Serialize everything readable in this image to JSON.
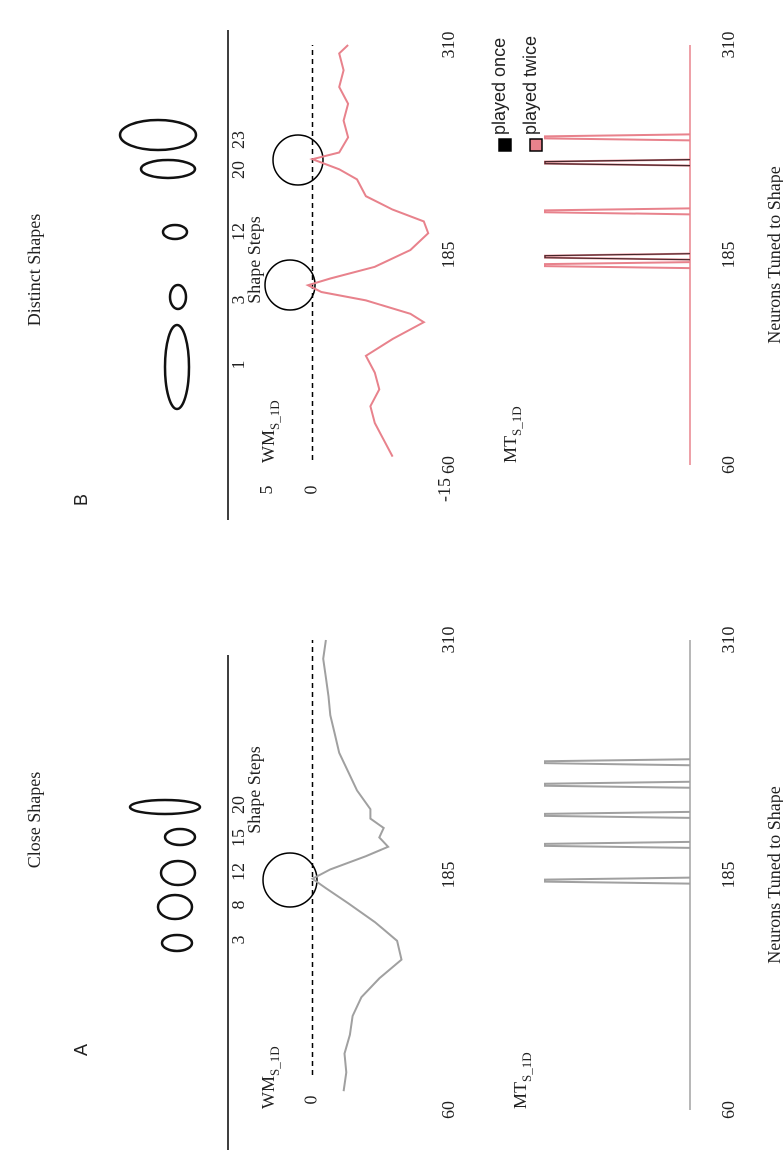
{
  "panels": [
    {
      "label": "A",
      "title": "Close Shapes",
      "shape_steps": {
        "label": "Shape Steps",
        "steps": [
          3,
          8,
          12,
          15,
          20
        ]
      }
    },
    {
      "label": "B",
      "title": "Distinct Shapes",
      "shape_steps": {
        "label": "Shape Steps",
        "steps": [
          1,
          3,
          12,
          20,
          23
        ]
      }
    }
  ],
  "chart_data": [
    {
      "type": "line",
      "ylabel": "WM",
      "ylabel_sub": "S_1D",
      "xlim": [
        60,
        310
      ],
      "xticks": [
        60,
        185,
        310
      ],
      "ylim": [
        -15,
        5
      ],
      "yticks": [
        0
      ],
      "hline": 0,
      "color": "#a0a0a0",
      "x": [
        70,
        80,
        90,
        100,
        110,
        120,
        130,
        140,
        150,
        160,
        170,
        178,
        183,
        188,
        195,
        200,
        205,
        210,
        215,
        220,
        230,
        240,
        250,
        260,
        270,
        280,
        290,
        300,
        310
      ],
      "values": [
        -3.5,
        -3.8,
        -3.6,
        -4.2,
        -4.5,
        -5.5,
        -7.5,
        -10,
        -9.5,
        -7,
        -4,
        -1.5,
        0,
        -2,
        -6,
        -8.5,
        -7.5,
        -8,
        -6.5,
        -6.5,
        -5,
        -4,
        -3,
        -2.5,
        -2,
        -1.8,
        -1.5,
        -1.2,
        -1.5
      ]
    },
    {
      "type": "spike",
      "ylabel": "MT",
      "ylabel_sub": "S_1D",
      "xlim": [
        60,
        310
      ],
      "xticks": [
        60,
        185,
        310
      ],
      "xlabel": "Neurons Tuned to Shape",
      "series": [
        {
          "color": "#a0a0a0",
          "x": [
            182,
            201,
            217,
            233,
            245
          ]
        }
      ]
    },
    {
      "type": "line",
      "ylabel": "WM",
      "ylabel_sub": "S_1D",
      "xlim": [
        60,
        310
      ],
      "xticks": [
        60,
        185,
        310
      ],
      "ylim": [
        -15,
        5
      ],
      "yticks": [
        -15,
        0,
        5
      ],
      "hline": 0,
      "color": "#e8828c",
      "x": [
        65,
        75,
        85,
        95,
        105,
        115,
        125,
        135,
        145,
        150,
        158,
        163,
        167,
        171,
        178,
        188,
        198,
        205,
        212,
        220,
        230,
        236,
        242,
        246,
        255,
        265,
        275,
        285,
        295,
        305,
        310
      ],
      "values": [
        -9,
        -8,
        -7,
        -6.5,
        -7.5,
        -7,
        -6,
        -9,
        -12.5,
        -11,
        -6,
        -1,
        0.5,
        -2,
        -7,
        -11,
        -13,
        -12.5,
        -9,
        -6,
        -5,
        -3,
        0,
        -3,
        -4,
        -3.5,
        -4,
        -3,
        -3.5,
        -3,
        -4
      ]
    },
    {
      "type": "spike",
      "ylabel": "MT",
      "ylabel_sub": "S_1D",
      "xlim": [
        60,
        310
      ],
      "xticks": [
        60,
        185,
        310
      ],
      "xlabel": "Neurons Tuned to Shape",
      "series": [
        {
          "name": "played once",
          "color": "#000000",
          "x": [
            184,
            240
          ]
        },
        {
          "name": "played twice",
          "color": "#e8828c",
          "x": [
            179,
            184,
            211,
            240,
            255
          ]
        }
      ]
    }
  ]
}
